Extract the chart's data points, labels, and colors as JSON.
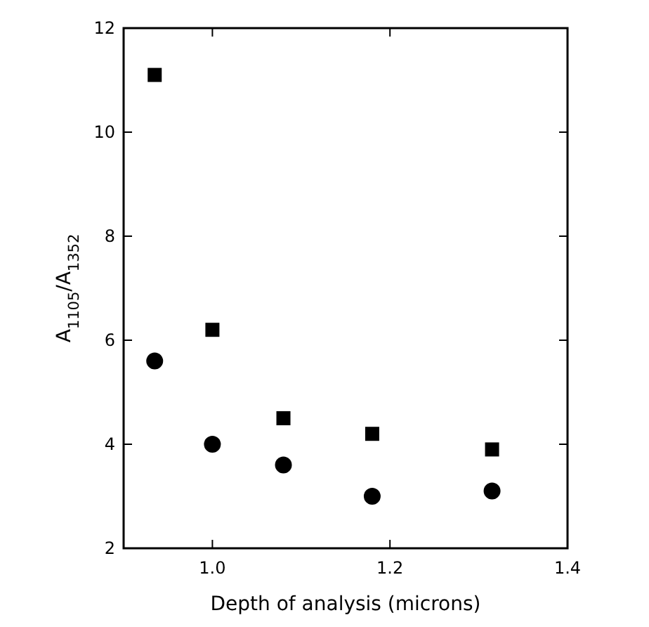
{
  "chart_data": {
    "type": "scatter",
    "xlabel": "Depth of analysis (microns)",
    "ylabel": "A$_{1105}$/A$_{1352}$",
    "x": [
      0.935,
      1.0,
      1.08,
      1.18,
      1.315
    ],
    "series": [
      {
        "color": "#000000",
        "marker": "square",
        "values": [
          11.1,
          6.2,
          4.5,
          4.2,
          3.9
        ]
      },
      {
        "color": "#000000",
        "marker": "circle",
        "values": [
          5.6,
          4.0,
          3.6,
          3.0,
          3.1
        ]
      }
    ],
    "xlim": [
      0.9,
      1.4
    ],
    "xticks": [
      {
        "value": 1.0,
        "label": "1.0"
      },
      {
        "value": 1.2,
        "label": "1.2"
      },
      {
        "value": 1.4,
        "label": "1.4"
      }
    ],
    "ylim": [
      2,
      12
    ],
    "yticks": [
      2,
      4,
      6,
      8,
      10,
      12
    ],
    "grid": false
  }
}
